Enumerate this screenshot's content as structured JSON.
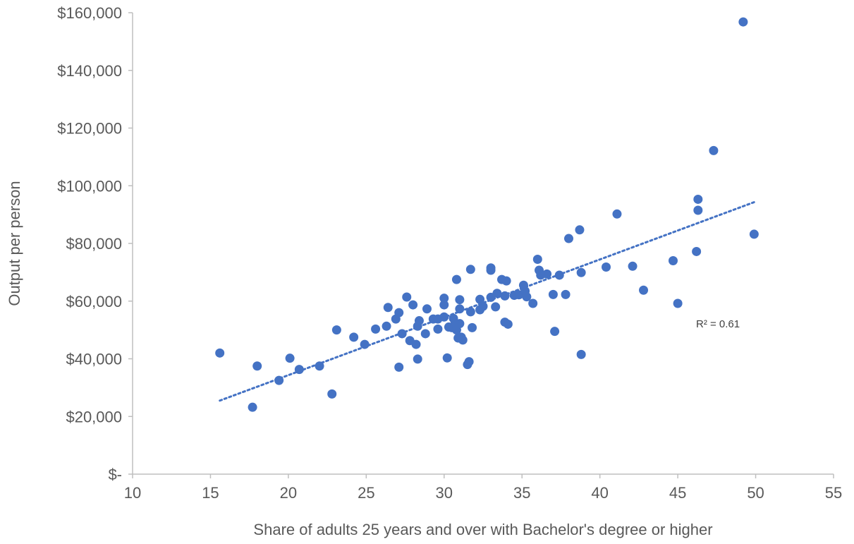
{
  "chart_data": {
    "type": "scatter",
    "xlabel": "Share of adults 25 years and over with Bachelor's degree or higher",
    "ylabel": "Output per person",
    "xlim": [
      10,
      55
    ],
    "ylim": [
      0,
      160000
    ],
    "x_ticks": [
      10,
      15,
      20,
      25,
      30,
      35,
      40,
      45,
      50,
      55
    ],
    "y_ticks": [
      {
        "value": 0,
        "label": "$-"
      },
      {
        "value": 20000,
        "label": "$20,000"
      },
      {
        "value": 40000,
        "label": "$40,000"
      },
      {
        "value": 60000,
        "label": "$60,000"
      },
      {
        "value": 80000,
        "label": "$80,000"
      },
      {
        "value": 100000,
        "label": "$100,000"
      },
      {
        "value": 120000,
        "label": "$120,000"
      },
      {
        "value": 140000,
        "label": "$140,000"
      },
      {
        "value": 160000,
        "label": "$160,000"
      }
    ],
    "grid": false,
    "marker_color": "#4472C4",
    "trendline": {
      "type": "linear",
      "style": "dotted",
      "color": "#4472C4",
      "start": [
        15.6,
        25500
      ],
      "end": [
        50,
        94500
      ],
      "label": "R² = 0.61"
    },
    "points": [
      [
        15.6,
        42000
      ],
      [
        17.7,
        23200
      ],
      [
        18.0,
        37500
      ],
      [
        19.4,
        32500
      ],
      [
        20.1,
        40200
      ],
      [
        20.7,
        36300
      ],
      [
        22.0,
        37500
      ],
      [
        22.8,
        27800
      ],
      [
        23.1,
        50000
      ],
      [
        24.2,
        47500
      ],
      [
        24.9,
        45000
      ],
      [
        25.6,
        50300
      ],
      [
        26.3,
        51300
      ],
      [
        26.4,
        57800
      ],
      [
        26.9,
        53800
      ],
      [
        27.1,
        56000
      ],
      [
        27.1,
        37100
      ],
      [
        27.3,
        48700
      ],
      [
        27.6,
        61400
      ],
      [
        27.8,
        46300
      ],
      [
        28.0,
        58700
      ],
      [
        28.2,
        45000
      ],
      [
        28.3,
        51300
      ],
      [
        28.3,
        39900
      ],
      [
        28.4,
        53200
      ],
      [
        28.8,
        48700
      ],
      [
        28.9,
        57300
      ],
      [
        29.3,
        53800
      ],
      [
        29.6,
        53800
      ],
      [
        29.6,
        50300
      ],
      [
        30.0,
        61000
      ],
      [
        30.0,
        58700
      ],
      [
        30.0,
        54500
      ],
      [
        30.2,
        40300
      ],
      [
        30.3,
        51000
      ],
      [
        30.5,
        50800
      ],
      [
        30.6,
        54000
      ],
      [
        30.7,
        52200
      ],
      [
        30.8,
        67500
      ],
      [
        30.8,
        50000
      ],
      [
        30.9,
        47200
      ],
      [
        31.0,
        60500
      ],
      [
        31.0,
        52200
      ],
      [
        31.0,
        57300
      ],
      [
        31.1,
        47500
      ],
      [
        31.2,
        46500
      ],
      [
        31.5,
        38000
      ],
      [
        31.6,
        39000
      ],
      [
        31.7,
        71000
      ],
      [
        31.7,
        56300
      ],
      [
        31.8,
        50800
      ],
      [
        32.3,
        60600
      ],
      [
        32.3,
        57000
      ],
      [
        32.5,
        58200
      ],
      [
        33.0,
        71500
      ],
      [
        33.0,
        70700
      ],
      [
        33.0,
        61300
      ],
      [
        33.3,
        58000
      ],
      [
        33.4,
        62700
      ],
      [
        33.7,
        67500
      ],
      [
        33.9,
        61800
      ],
      [
        34.0,
        67000
      ],
      [
        33.9,
        52700
      ],
      [
        34.1,
        52000
      ],
      [
        34.5,
        62000
      ],
      [
        34.8,
        62200
      ],
      [
        35.1,
        65500
      ],
      [
        35.2,
        63500
      ],
      [
        35.3,
        61500
      ],
      [
        35.7,
        59200
      ],
      [
        36.0,
        74500
      ],
      [
        36.1,
        70700
      ],
      [
        36.2,
        69000
      ],
      [
        36.6,
        69400
      ],
      [
        37.0,
        62300
      ],
      [
        37.1,
        49500
      ],
      [
        37.4,
        69000
      ],
      [
        37.8,
        62300
      ],
      [
        38.0,
        81700
      ],
      [
        38.7,
        84700
      ],
      [
        38.8,
        69900
      ],
      [
        38.8,
        41500
      ],
      [
        40.4,
        71800
      ],
      [
        41.1,
        90200
      ],
      [
        42.1,
        72100
      ],
      [
        42.8,
        63800
      ],
      [
        44.7,
        74000
      ],
      [
        45.0,
        59200
      ],
      [
        46.2,
        77200
      ],
      [
        46.3,
        95300
      ],
      [
        46.3,
        91500
      ],
      [
        47.3,
        112200
      ],
      [
        49.2,
        156800
      ],
      [
        49.9,
        83200
      ]
    ]
  }
}
